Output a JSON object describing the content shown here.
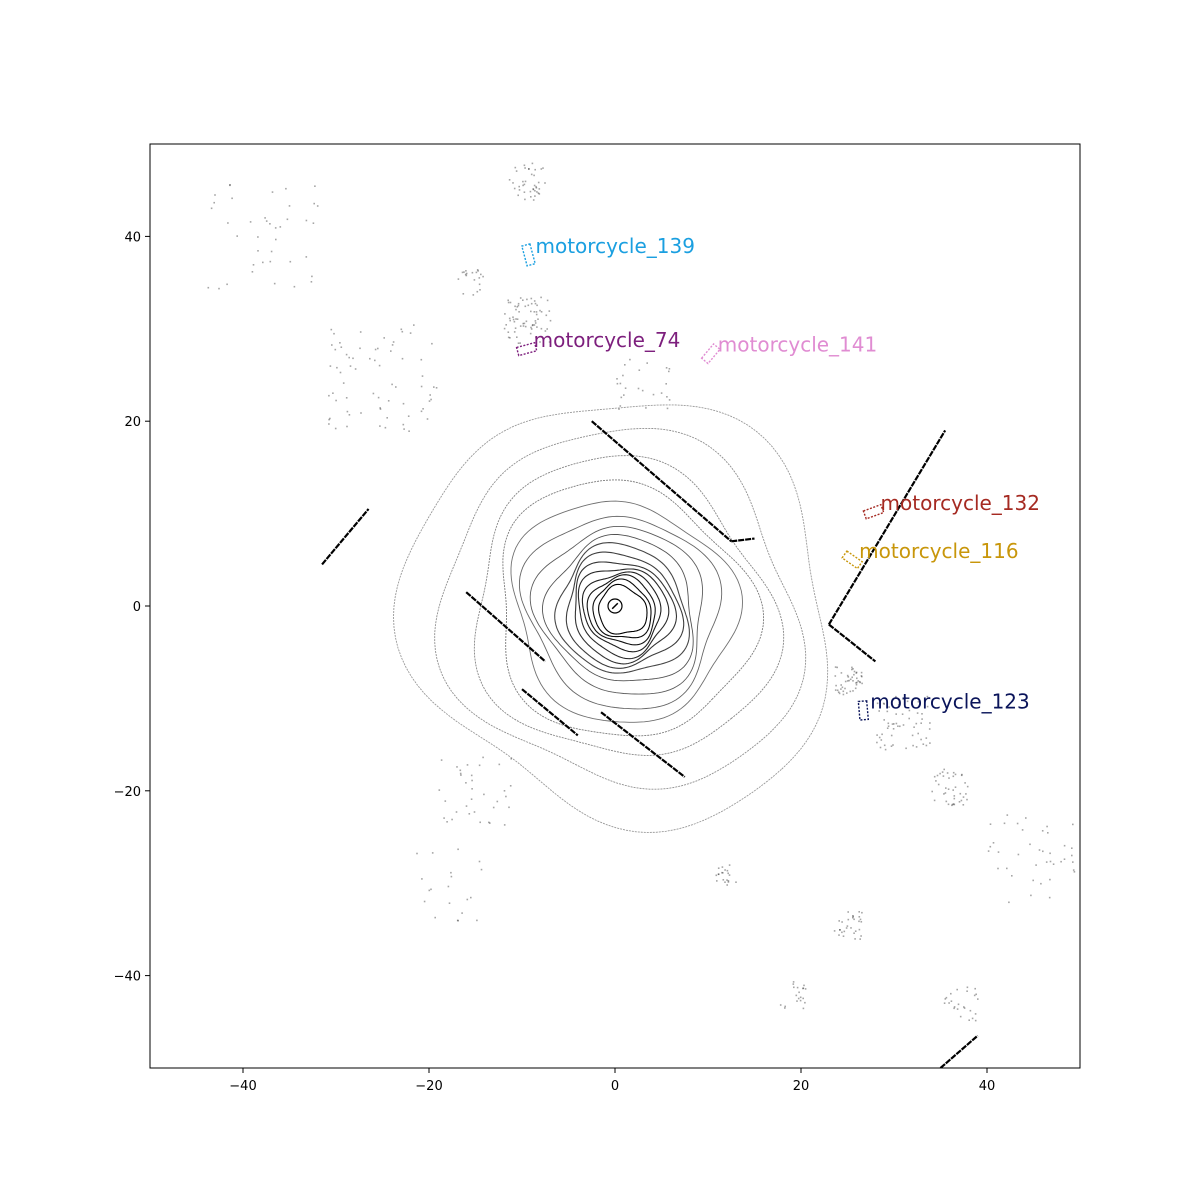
{
  "chart_data": {
    "type": "scatter",
    "title": "",
    "xlabel": "",
    "ylabel": "",
    "xlim": [
      -50,
      50
    ],
    "ylim": [
      -50,
      50
    ],
    "x_ticks": [
      -40,
      -20,
      0,
      20,
      40
    ],
    "y_ticks": [
      -40,
      -20,
      0,
      20,
      40
    ],
    "x_tick_labels": [
      "−40",
      "−20",
      "0",
      "20",
      "40"
    ],
    "y_tick_labels": [
      "−40",
      "−20",
      "0",
      "20",
      "40"
    ],
    "grid": false,
    "point_color": "#000000",
    "ego_vehicle": {
      "x": 0,
      "y": 0
    },
    "lidar_rings": [
      {
        "r": 2.5
      },
      {
        "r": 3.0
      },
      {
        "r": 3.5
      },
      {
        "r": 4.0
      },
      {
        "r": 4.6
      },
      {
        "r": 5.2
      },
      {
        "r": 5.9
      },
      {
        "r": 6.7
      },
      {
        "r": 7.6
      },
      {
        "r": 8.7
      },
      {
        "r": 10.0
      },
      {
        "r": 11.5
      },
      {
        "r": 13.3
      },
      {
        "r": 15.5
      },
      {
        "r": 18.5
      },
      {
        "r": 22.0
      }
    ],
    "wall_segments": [
      {
        "x1": -2.5,
        "y1": 20.0,
        "x2": 12.5,
        "y2": 7.0
      },
      {
        "x1": 12.5,
        "y1": 7.0,
        "x2": 15.0,
        "y2": 7.3
      },
      {
        "x1": -16.0,
        "y1": 1.5,
        "x2": -7.5,
        "y2": -6.0
      },
      {
        "x1": -1.5,
        "y1": -11.5,
        "x2": 7.5,
        "y2": -18.5
      },
      {
        "x1": -10.0,
        "y1": -9.0,
        "x2": -4.0,
        "y2": -14.0
      },
      {
        "x1": 23.0,
        "y1": -2.0,
        "x2": 35.5,
        "y2": 19.0
      },
      {
        "x1": 23.0,
        "y1": -2.0,
        "x2": 28.0,
        "y2": -6.0
      },
      {
        "x1": -31.5,
        "y1": 4.5,
        "x2": -26.5,
        "y2": 10.5
      },
      {
        "x1": 35.0,
        "y1": -50.0,
        "x2": 39.0,
        "y2": -46.5
      }
    ],
    "scatter_clusters": [
      {
        "x": -9.5,
        "y": 46.0,
        "spread": 2.0,
        "n": 40
      },
      {
        "x": -9.5,
        "y": 31.0,
        "spread": 2.5,
        "n": 70
      },
      {
        "x": -15.5,
        "y": 35.0,
        "spread": 1.5,
        "n": 20
      },
      {
        "x": 25.0,
        "y": -8.0,
        "spread": 1.5,
        "n": 45
      },
      {
        "x": 31.0,
        "y": -12.5,
        "spread": 3.0,
        "n": 60
      },
      {
        "x": 36.0,
        "y": -19.5,
        "spread": 2.0,
        "n": 40
      },
      {
        "x": 25.0,
        "y": -34.5,
        "spread": 1.5,
        "n": 30
      },
      {
        "x": 37.0,
        "y": -43.0,
        "spread": 2.0,
        "n": 25
      },
      {
        "x": 19.0,
        "y": -42.0,
        "spread": 1.5,
        "n": 20
      },
      {
        "x": 12.0,
        "y": -29.0,
        "spread": 1.2,
        "n": 20
      },
      {
        "x": -25.0,
        "y": 25.0,
        "spread": 6.0,
        "n": 70
      },
      {
        "x": -38.0,
        "y": 40.0,
        "spread": 6.0,
        "n": 40
      },
      {
        "x": 45.0,
        "y": -27.0,
        "spread": 5.0,
        "n": 40
      },
      {
        "x": -15.0,
        "y": -20.0,
        "spread": 4.0,
        "n": 35
      },
      {
        "x": 3.0,
        "y": 24.0,
        "spread": 3.0,
        "n": 25
      },
      {
        "x": -18.0,
        "y": -30.0,
        "spread": 4.0,
        "n": 20
      }
    ],
    "boxes": [
      {
        "label": "motorcycle_139",
        "color": "#1a9fe0",
        "x": -9.3,
        "y": 38.0,
        "w": 2.2,
        "h": 0.9,
        "angle": 75
      },
      {
        "label": "motorcycle_74",
        "color": "#7d1f7d",
        "x": -9.5,
        "y": 27.8,
        "w": 2.0,
        "h": 0.9,
        "angle": -15
      },
      {
        "label": "motorcycle_141",
        "color": "#e08cd2",
        "x": 10.3,
        "y": 27.3,
        "w": 2.0,
        "h": 0.9,
        "angle": -50
      },
      {
        "label": "motorcycle_132",
        "color": "#a52a22",
        "x": 27.8,
        "y": 10.2,
        "w": 2.0,
        "h": 0.9,
        "angle": -20
      },
      {
        "label": "motorcycle_116",
        "color": "#c8960a",
        "x": 25.5,
        "y": 5.0,
        "w": 2.0,
        "h": 0.9,
        "angle": 35
      },
      {
        "label": "motorcycle_123",
        "color": "#0a145a",
        "x": 26.7,
        "y": -11.3,
        "w": 2.0,
        "h": 0.9,
        "angle": 85
      }
    ]
  }
}
